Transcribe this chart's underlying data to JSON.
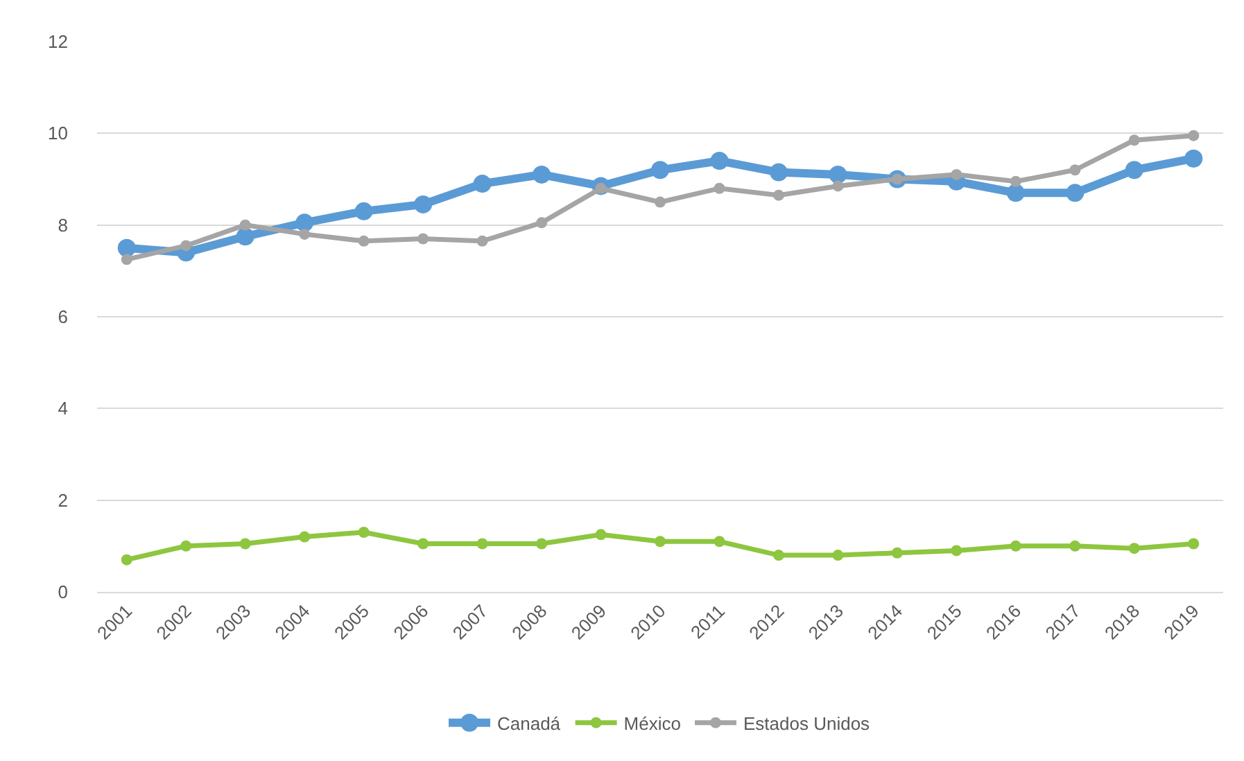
{
  "chart_data": {
    "type": "line",
    "categories": [
      "2001",
      "2002",
      "2003",
      "2004",
      "2005",
      "2006",
      "2007",
      "2008",
      "2009",
      "2010",
      "2011",
      "2012",
      "2013",
      "2014",
      "2015",
      "2016",
      "2017",
      "2018",
      "2019"
    ],
    "series": [
      {
        "name": "Canadá",
        "color": "#5b9bd5",
        "values": [
          7.5,
          7.4,
          7.75,
          8.05,
          8.3,
          8.45,
          8.9,
          9.1,
          8.85,
          9.2,
          9.4,
          9.15,
          9.1,
          9.0,
          8.95,
          8.7,
          8.7,
          9.2,
          9.45
        ]
      },
      {
        "name": "México",
        "color": "#8dc63f",
        "values": [
          0.7,
          1.0,
          1.05,
          1.2,
          1.3,
          1.05,
          1.05,
          1.05,
          1.25,
          1.1,
          1.1,
          0.8,
          0.8,
          0.85,
          0.9,
          1.0,
          1.0,
          0.95,
          1.05
        ]
      },
      {
        "name": "Estados Unidos",
        "color": "#a5a5a5",
        "values": [
          7.25,
          7.55,
          8.0,
          7.8,
          7.65,
          7.7,
          7.65,
          8.05,
          8.8,
          8.5,
          8.8,
          8.65,
          8.85,
          9.0,
          9.1,
          8.95,
          9.2,
          9.85,
          9.95
        ]
      }
    ],
    "ylim": [
      0,
      12
    ],
    "yticks": [
      0,
      2,
      4,
      6,
      8,
      10,
      12
    ],
    "grid": "y",
    "legend": "bottom",
    "marker": "circle",
    "line_style": "solid"
  }
}
